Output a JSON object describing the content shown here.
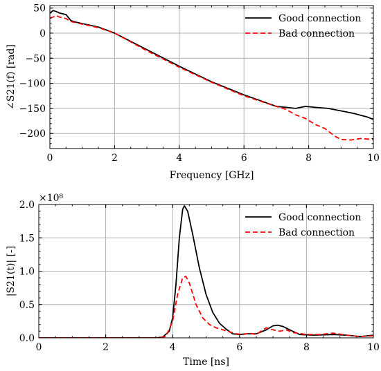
{
  "chart_data": [
    {
      "type": "line",
      "xlabel": "Frequency [GHz]",
      "ylabel": "∠S21(f) [rad]",
      "xlim": [
        0,
        10
      ],
      "ylim": [
        -230,
        55
      ],
      "xticks": [
        0,
        2,
        4,
        6,
        8,
        10
      ],
      "yticks": [
        50,
        0,
        -50,
        -100,
        -150,
        -200
      ],
      "grid": true,
      "legend_position": "top-right",
      "series": [
        {
          "name": "Good connection",
          "color": "#000000",
          "dash": "solid",
          "x": [
            0,
            0.1,
            0.2,
            0.3,
            0.5,
            0.65,
            0.8,
            1.0,
            1.5,
            2,
            3,
            4,
            5,
            6,
            7,
            7.3,
            7.6,
            7.9,
            8.2,
            8.6,
            9.0,
            9.4,
            9.8,
            10
          ],
          "y": [
            40,
            45,
            43,
            40,
            37,
            25,
            22,
            19,
            12,
            0,
            -33,
            -66,
            -97,
            -123,
            -146,
            -148,
            -150,
            -146,
            -148,
            -150,
            -155,
            -160,
            -167,
            -172
          ]
        },
        {
          "name": "Bad connection",
          "color": "#ff0000",
          "dash": "dashed",
          "x": [
            0,
            0.1,
            0.2,
            0.3,
            0.5,
            0.65,
            0.8,
            1.0,
            1.5,
            2,
            3,
            4,
            5,
            6,
            7,
            7.3,
            7.6,
            7.9,
            8.2,
            8.5,
            8.8,
            9.0,
            9.3,
            9.6,
            10
          ],
          "y": [
            30,
            32,
            35,
            32,
            29,
            23,
            21,
            18,
            11,
            0,
            -35,
            -68,
            -98,
            -125,
            -146,
            -152,
            -163,
            -170,
            -182,
            -190,
            -205,
            -212,
            -213,
            -210,
            -212
          ]
        }
      ]
    },
    {
      "type": "line",
      "xlabel": "Time [ns]",
      "ylabel": "|S21(t)| [-]",
      "scale_label": "×10⁸",
      "xlim": [
        0,
        10
      ],
      "ylim": [
        0,
        2.0
      ],
      "xticks": [
        0,
        2,
        4,
        6,
        8,
        10
      ],
      "yticks": [
        0.0,
        0.5,
        1.0,
        1.5,
        2.0
      ],
      "ytick_labels": [
        "0.0",
        "0.5",
        "1.0",
        "1.5",
        "2.0"
      ],
      "grid": true,
      "legend_position": "top-right",
      "series": [
        {
          "name": "Good connection",
          "color": "#000000",
          "dash": "solid",
          "x": [
            0,
            3.5,
            3.7,
            3.9,
            4.0,
            4.1,
            4.2,
            4.3,
            4.35,
            4.45,
            4.6,
            4.8,
            5.0,
            5.2,
            5.4,
            5.6,
            5.8,
            6.0,
            6.2,
            6.5,
            6.8,
            7.0,
            7.15,
            7.3,
            7.5,
            7.8,
            8.2,
            8.8,
            9.2,
            9.6,
            10
          ],
          "y": [
            0,
            0,
            0.01,
            0.1,
            0.3,
            0.8,
            1.5,
            1.93,
            1.98,
            1.9,
            1.55,
            1.05,
            0.65,
            0.38,
            0.22,
            0.13,
            0.06,
            0.05,
            0.06,
            0.06,
            0.12,
            0.18,
            0.19,
            0.17,
            0.12,
            0.05,
            0.04,
            0.05,
            0.04,
            0.02,
            0.04
          ]
        },
        {
          "name": "Bad connection",
          "color": "#ff0000",
          "dash": "dashed",
          "x": [
            0,
            3.5,
            3.8,
            4.0,
            4.15,
            4.3,
            4.4,
            4.5,
            4.7,
            4.9,
            5.1,
            5.3,
            5.5,
            5.7,
            5.9,
            6.1,
            6.3,
            6.5,
            6.7,
            6.8,
            7.0,
            7.2,
            7.4,
            7.6,
            8.0,
            8.4,
            8.8,
            9.2,
            9.6,
            10
          ],
          "y": [
            0,
            0,
            0.02,
            0.25,
            0.65,
            0.9,
            0.92,
            0.82,
            0.5,
            0.3,
            0.2,
            0.15,
            0.12,
            0.09,
            0.06,
            0.05,
            0.07,
            0.05,
            0.12,
            0.15,
            0.12,
            0.1,
            0.12,
            0.08,
            0.05,
            0.05,
            0.07,
            0.04,
            0.02,
            0.03
          ]
        }
      ]
    }
  ]
}
